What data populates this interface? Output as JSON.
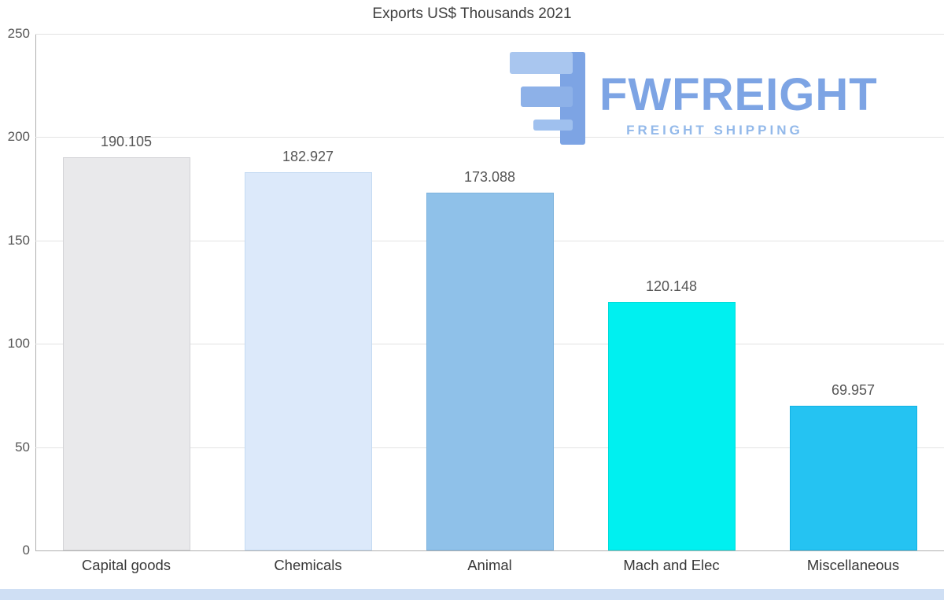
{
  "chart_data": {
    "type": "bar",
    "title": "Exports US$ Thousands 2021",
    "categories": [
      "Capital goods",
      "Chemicals",
      "Animal",
      "Mach and Elec",
      "Miscellaneous"
    ],
    "values": [
      190.105,
      182.927,
      173.088,
      120.148,
      69.957
    ],
    "value_labels": [
      "190.105",
      "182.927",
      "173.088",
      "120.148",
      "69.957"
    ],
    "bar_colors": [
      "#e9e9eb",
      "#dce9fa",
      "#8fc1e9",
      "#00f0f0",
      "#25c3f2"
    ],
    "bar_border_colors": [
      "#d3d3d7",
      "#c4daf2",
      "#7cb2dd",
      "#00dcda",
      "#12b2e4"
    ],
    "xlabel": "",
    "ylabel": "",
    "ylim": [
      0,
      250
    ],
    "yticks": [
      0,
      50,
      100,
      150,
      200,
      250
    ],
    "grid": true,
    "legend": false
  },
  "logo": {
    "title": "FWFREIGHT",
    "subtitle": "FREIGHT SHIPPING",
    "mark_icon": "fw-logo-mark-icon",
    "color_primary": "#7da4e4",
    "color_secondary": "#93b9ea",
    "color_mark_light": "#a9c6ef"
  },
  "footer": {
    "strip_color": "#cfdff4"
  }
}
